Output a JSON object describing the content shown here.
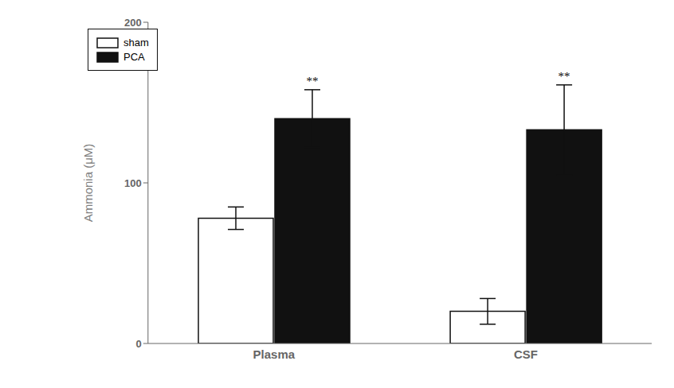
{
  "chart_data": {
    "type": "bar",
    "categories": [
      "Plasma",
      "CSF"
    ],
    "series": [
      {
        "name": "sham",
        "color": "#ffffff",
        "values": [
          78,
          20
        ],
        "errors": [
          7,
          8
        ]
      },
      {
        "name": "PCA",
        "color": "#111111",
        "values": [
          140,
          133
        ],
        "errors": [
          18,
          28
        ]
      }
    ],
    "ylabel": "Ammonia (μM)",
    "ylim": [
      0,
      200
    ],
    "yticks": [
      0,
      100,
      200
    ],
    "grid": false,
    "legend": "upper left",
    "annotations": [
      {
        "text": "**",
        "category": "Plasma",
        "series": "PCA"
      },
      {
        "text": "**",
        "category": "CSF",
        "series": "PCA"
      }
    ]
  }
}
